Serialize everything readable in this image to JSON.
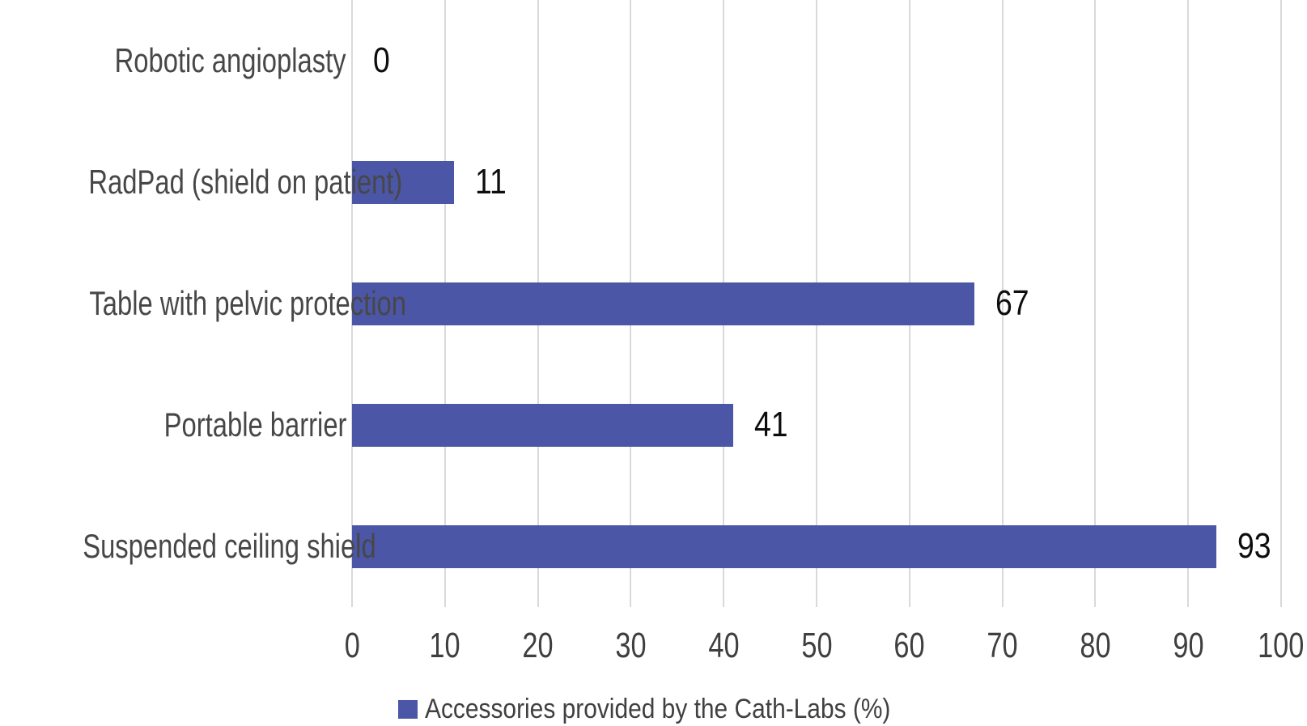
{
  "chart_data": {
    "type": "bar",
    "orientation": "horizontal",
    "categories": [
      "Robotic angioplasty",
      "RadPad (shield on patient)",
      "Table with pelvic protection",
      "Portable barrier",
      "Suspended ceiling shield"
    ],
    "values": [
      0,
      11,
      67,
      41,
      93
    ],
    "value_labels": [
      "0",
      "11",
      "67",
      "41",
      "93"
    ],
    "title": "",
    "xlabel": "",
    "ylabel": "",
    "xlim": [
      0,
      100
    ],
    "x_ticks": [
      0,
      10,
      20,
      30,
      40,
      50,
      60,
      70,
      80,
      90,
      100
    ],
    "grid": true,
    "legend_position": "bottom",
    "series_name": "Accessories provided by the Cath-Labs (%)",
    "colors": {
      "bar": "#4C56A7",
      "gridline": "#D9D9D9",
      "category_text": "#474747",
      "tick_text": "#3F3F3F",
      "value_text": "#0D0D0D",
      "legend_text": "#404040",
      "background": "#FFFFFF"
    }
  },
  "legend": {
    "label": "Accessories provided by the Cath-Labs (%)"
  }
}
